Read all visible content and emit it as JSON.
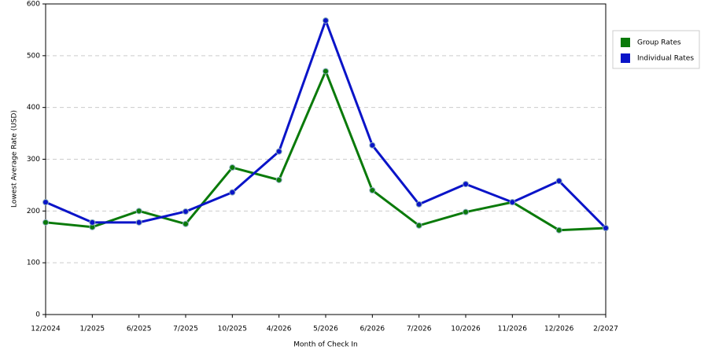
{
  "chart_data": {
    "type": "line",
    "xlabel": "Month of Check In",
    "ylabel": "Lowest Average Rate (USD)",
    "categories": [
      "12/2024",
      "1/2025",
      "6/2025",
      "7/2025",
      "10/2025",
      "4/2026",
      "5/2026",
      "6/2026",
      "7/2026",
      "10/2026",
      "11/2026",
      "12/2026",
      "2/2027"
    ],
    "series": [
      {
        "name": "Group Rates",
        "color": "#0a7a0a",
        "values": [
          178,
          169,
          200,
          175,
          284,
          260,
          470,
          240,
          172,
          198,
          217,
          163,
          167
        ]
      },
      {
        "name": "Individual Rates",
        "color": "#0a14c8",
        "values": [
          217,
          178,
          178,
          199,
          236,
          315,
          568,
          327,
          213,
          252,
          217,
          258,
          167
        ]
      }
    ],
    "ylim": [
      0,
      600
    ],
    "yticks": [
      0,
      100,
      200,
      300,
      400,
      500,
      600
    ],
    "grid": true,
    "legend": "right"
  }
}
